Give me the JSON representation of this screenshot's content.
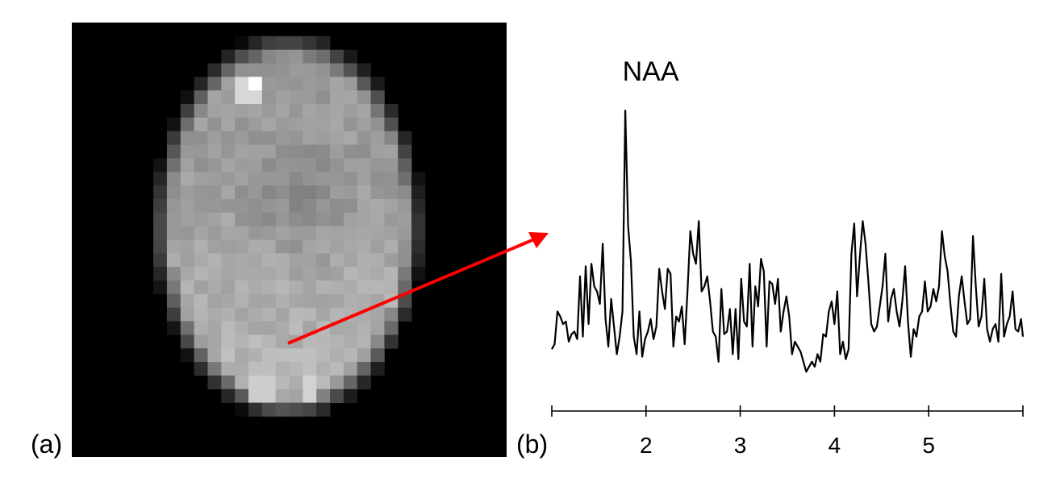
{
  "panels": {
    "a": {
      "label": "(a)"
    },
    "b": {
      "label": "(b)"
    }
  },
  "peak_label": "NAA",
  "colors": {
    "arrow": "#ff0000",
    "spectrum": "#000000",
    "background": "#000000"
  },
  "mri_image": {
    "description_kind": "grayscale axial brain MRI, low resolution pixel grid",
    "grid": [
      32,
      32
    ]
  },
  "chart_data": {
    "type": "line",
    "xlabel": "",
    "ylabel": "",
    "x_ticks": [
      2,
      3,
      4,
      5
    ],
    "xlim": [
      1,
      6
    ],
    "ylim": [
      -0.1,
      1.1
    ],
    "series": [
      {
        "x": [
          1.0,
          1.03,
          1.06,
          1.09,
          1.12,
          1.15,
          1.18,
          1.21,
          1.24,
          1.27,
          1.3,
          1.33,
          1.36,
          1.39,
          1.42,
          1.45,
          1.48,
          1.51,
          1.54,
          1.57,
          1.6,
          1.63,
          1.66,
          1.69,
          1.72,
          1.75,
          1.78,
          1.81,
          1.84,
          1.87,
          1.9,
          1.93,
          1.96,
          1.99,
          2.02,
          2.05,
          2.08,
          2.11,
          2.14,
          2.17,
          2.2,
          2.23,
          2.26,
          2.29,
          2.32,
          2.35,
          2.38,
          2.41,
          2.44,
          2.47,
          2.5,
          2.53,
          2.56,
          2.59,
          2.62,
          2.65,
          2.68,
          2.71,
          2.74,
          2.77,
          2.8,
          2.83,
          2.86,
          2.89,
          2.92,
          2.95,
          2.98,
          3.01,
          3.04,
          3.07,
          3.1,
          3.13,
          3.16,
          3.19,
          3.22,
          3.25,
          3.28,
          3.31,
          3.34,
          3.37,
          3.4,
          3.43,
          3.46,
          3.49,
          3.52,
          3.55,
          3.58,
          3.61,
          3.64,
          3.67,
          3.7,
          3.73,
          3.76,
          3.79,
          3.82,
          3.85,
          3.88,
          3.91,
          3.94,
          3.97,
          4.0,
          4.03,
          4.06,
          4.09,
          4.12,
          4.15,
          4.18,
          4.21,
          4.24,
          4.27,
          4.3,
          4.33,
          4.36,
          4.39,
          4.42,
          4.45,
          4.48,
          4.51,
          4.54,
          4.57,
          4.6,
          4.63,
          4.66,
          4.69,
          4.72,
          4.75,
          4.78,
          4.81,
          4.84,
          4.87,
          4.9,
          4.93,
          4.96,
          4.99,
          5.02,
          5.05,
          5.08,
          5.11,
          5.14,
          5.17,
          5.2,
          5.23,
          5.26,
          5.29,
          5.32,
          5.35,
          5.38,
          5.41,
          5.44,
          5.47,
          5.5,
          5.53,
          5.56,
          5.59,
          5.62,
          5.65,
          5.68,
          5.71,
          5.74,
          5.77,
          5.8,
          5.83,
          5.86,
          5.89,
          5.92,
          5.95,
          5.98,
          6.0
        ],
        "y": [
          0.05,
          0.07,
          0.2,
          0.18,
          0.15,
          0.16,
          0.08,
          0.11,
          0.12,
          0.09,
          0.34,
          0.1,
          0.38,
          0.15,
          0.39,
          0.3,
          0.28,
          0.23,
          0.47,
          0.17,
          0.06,
          0.25,
          0.14,
          0.03,
          0.1,
          0.2,
          1.0,
          0.54,
          0.4,
          0.1,
          0.03,
          0.2,
          0.02,
          0.09,
          0.12,
          0.17,
          0.09,
          0.14,
          0.37,
          0.28,
          0.21,
          0.37,
          0.35,
          0.06,
          0.18,
          0.16,
          0.22,
          0.07,
          0.28,
          0.52,
          0.43,
          0.39,
          0.56,
          0.28,
          0.3,
          0.34,
          0.24,
          0.12,
          0.1,
          0.0,
          0.29,
          0.11,
          0.12,
          0.21,
          0.03,
          0.21,
          0.01,
          0.33,
          0.16,
          0.14,
          0.39,
          0.06,
          0.3,
          0.22,
          0.41,
          0.36,
          0.06,
          0.32,
          0.31,
          0.23,
          0.33,
          0.12,
          0.2,
          0.26,
          0.18,
          0.03,
          0.08,
          0.06,
          0.04,
          0.0,
          -0.04,
          -0.02,
          0.0,
          -0.02,
          0.03,
          0.0,
          0.11,
          0.1,
          0.2,
          0.24,
          0.15,
          0.28,
          0.03,
          0.08,
          0.01,
          0.05,
          0.43,
          0.55,
          0.26,
          0.42,
          0.56,
          0.47,
          0.32,
          0.15,
          0.12,
          0.14,
          0.22,
          0.3,
          0.43,
          0.16,
          0.25,
          0.29,
          0.2,
          0.14,
          0.24,
          0.38,
          0.16,
          0.02,
          0.13,
          0.1,
          0.18,
          0.2,
          0.32,
          0.2,
          0.22,
          0.29,
          0.24,
          0.3,
          0.52,
          0.42,
          0.36,
          0.23,
          0.12,
          0.1,
          0.26,
          0.34,
          0.24,
          0.15,
          0.17,
          0.5,
          0.3,
          0.14,
          0.18,
          0.33,
          0.13,
          0.08,
          0.13,
          0.15,
          0.08,
          0.35,
          0.1,
          0.15,
          0.18,
          0.28,
          0.13,
          0.12,
          0.17,
          0.1
        ]
      }
    ],
    "annotations": [
      {
        "text": "NAA",
        "x": 2.05
      }
    ]
  }
}
